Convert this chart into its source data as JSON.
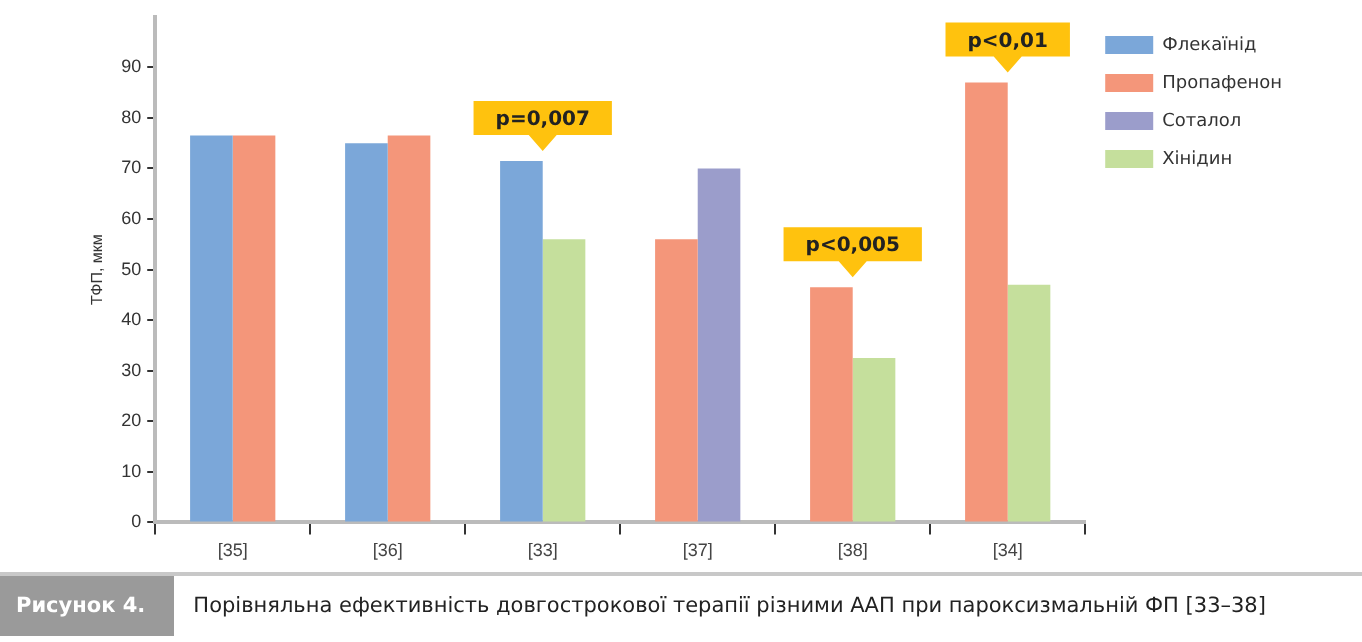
{
  "chart_data": {
    "type": "bar",
    "title": "Порівняльна ефективність довгострокової терапії різними ААП при пароксизмальній ФП [33–38]",
    "ylabel": "ТФП, мкм",
    "categories": [
      "[35]",
      "[36]",
      "[33]",
      "[37]",
      "[38]",
      "[34]"
    ],
    "series": [
      {
        "name": "Флекаїнід",
        "color": "#7ba7d9",
        "values": [
          76.5,
          75,
          71.5,
          null,
          null,
          null
        ]
      },
      {
        "name": "Пропафенон",
        "color": "#f4967a",
        "values": [
          76.5,
          76.5,
          null,
          56,
          46.5,
          87
        ]
      },
      {
        "name": "Соталол",
        "color": "#9b9dcb",
        "values": [
          null,
          null,
          null,
          70,
          null,
          null
        ]
      },
      {
        "name": "Хінідин",
        "color": "#c5df9c",
        "values": [
          null,
          null,
          56,
          null,
          32.5,
          47
        ]
      }
    ],
    "ylim": [
      0,
      100
    ],
    "yticks": [
      0,
      10,
      20,
      30,
      40,
      50,
      60,
      70,
      80,
      90
    ],
    "grid": false,
    "legend": "top right",
    "annotations": [
      "Рисунок 4.",
      {
        "text": "p=0,007",
        "x": "[33]",
        "y": 71.5
      },
      {
        "text": "p<0,005",
        "x": "[38]",
        "y": 46.5
      },
      {
        "text": "p<0,01",
        "x": "[34]",
        "y": 87
      }
    ]
  }
}
